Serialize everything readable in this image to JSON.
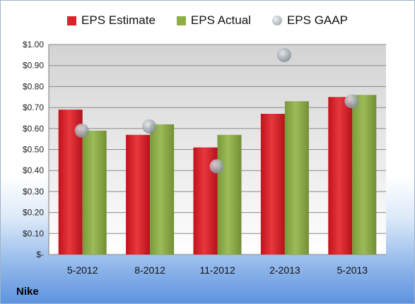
{
  "chart_data": {
    "type": "bar",
    "categories": [
      "5-2012",
      "8-2012",
      "11-2012",
      "2-2013",
      "5-2013"
    ],
    "series": [
      {
        "name": "EPS Estimate",
        "kind": "bar",
        "color": "#d9232a",
        "values": [
          0.69,
          0.57,
          0.51,
          0.67,
          0.75
        ]
      },
      {
        "name": "EPS Actual",
        "kind": "bar",
        "color": "#8eae47",
        "values": [
          0.59,
          0.62,
          0.57,
          0.73,
          0.76
        ]
      },
      {
        "name": "EPS GAAP",
        "kind": "marker",
        "color": "#b5bcc4",
        "values": [
          0.59,
          0.61,
          0.42,
          0.95,
          0.73
        ]
      }
    ],
    "ylim": [
      0,
      1.0
    ],
    "yticks": [
      "$-",
      "$0.10",
      "$0.20",
      "$0.30",
      "$0.40",
      "$0.50",
      "$0.60",
      "$0.70",
      "$0.80",
      "$0.90",
      "$1.00"
    ],
    "legend_position": "top",
    "grid": true
  },
  "footer": {
    "company": "Nike"
  }
}
